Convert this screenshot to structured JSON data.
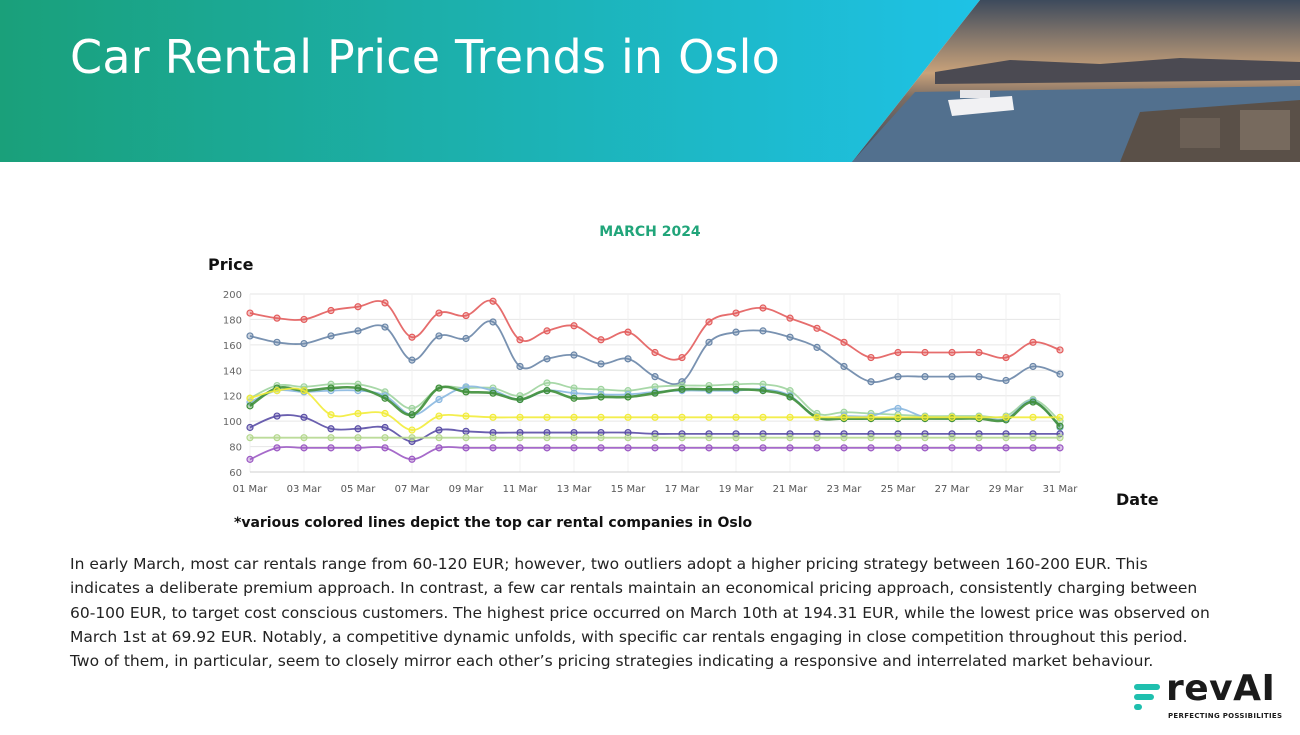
{
  "header": {
    "title": "Car Rental Price Trends in Oslo",
    "gradient_start": "#1aa07a",
    "gradient_end": "#1ec2e6"
  },
  "chart_data": {
    "type": "line",
    "title": "MARCH 2024",
    "ylabel": "Price",
    "xlabel": "Date",
    "ylim": [
      60,
      200
    ],
    "yticks": [
      60,
      80,
      100,
      120,
      140,
      160,
      180,
      200
    ],
    "x": [
      "01 Mar",
      "02 Mar",
      "03 Mar",
      "04 Mar",
      "05 Mar",
      "06 Mar",
      "07 Mar",
      "08 Mar",
      "09 Mar",
      "10 Mar",
      "11 Mar",
      "12 Mar",
      "13 Mar",
      "14 Mar",
      "15 Mar",
      "16 Mar",
      "17 Mar",
      "18 Mar",
      "19 Mar",
      "20 Mar",
      "21 Mar",
      "22 Mar",
      "23 Mar",
      "24 Mar",
      "25 Mar",
      "26 Mar",
      "27 Mar",
      "28 Mar",
      "29 Mar",
      "30 Mar",
      "31 Mar"
    ],
    "xtick_labels": [
      "01 Mar",
      "03 Mar",
      "05 Mar",
      "07 Mar",
      "09 Mar",
      "11 Mar",
      "13 Mar",
      "15 Mar",
      "17 Mar",
      "19 Mar",
      "21 Mar",
      "23 Mar",
      "25 Mar",
      "27 Mar",
      "29 Mar",
      "31 Mar"
    ],
    "grid": true,
    "legend": "none",
    "series": [
      {
        "color": "#e35d5d",
        "values": [
          185,
          181,
          180,
          187,
          190,
          193,
          166,
          185,
          183,
          194.31,
          164,
          171,
          175,
          164,
          170,
          154,
          150,
          178,
          185,
          189,
          181,
          173,
          162,
          150,
          154,
          154,
          154,
          154,
          150,
          162,
          156
        ]
      },
      {
        "color": "#6a86a8",
        "values": [
          167,
          162,
          161,
          167,
          171,
          174,
          148,
          167,
          165,
          178,
          143,
          149,
          152,
          145,
          149,
          135,
          131,
          162,
          170,
          171,
          166,
          158,
          143,
          131,
          135,
          135,
          135,
          135,
          132,
          143,
          137
        ]
      },
      {
        "color": "#9fd49f",
        "values": [
          118,
          128,
          127,
          129,
          129,
          123,
          110,
          126,
          126,
          126,
          120,
          130,
          126,
          125,
          124,
          127,
          128,
          128,
          129,
          129,
          124,
          106,
          107,
          106,
          105,
          104,
          104,
          104,
          104,
          117,
          100
        ]
      },
      {
        "color": "#8ab8e0",
        "values": [
          115,
          124,
          123,
          124,
          124,
          120,
          105,
          117,
          127,
          124,
          117,
          124,
          122,
          121,
          121,
          123,
          124,
          124,
          124,
          125,
          120,
          103,
          104,
          104,
          110,
          103,
          102,
          103,
          102,
          116,
          95
        ]
      },
      {
        "color": "#3f8f3a",
        "values": [
          112,
          126,
          124,
          126,
          126,
          118,
          105,
          126,
          123,
          122,
          117,
          124,
          118,
          119,
          119,
          122,
          125,
          125,
          125,
          124,
          119,
          103,
          102,
          102,
          102,
          102,
          102,
          102,
          101,
          115,
          96
        ]
      },
      {
        "color": "#f2ec3a",
        "values": [
          118,
          124,
          124,
          105,
          106,
          106,
          93,
          104,
          104,
          103,
          103,
          103,
          103,
          103,
          103,
          103,
          103,
          103,
          103,
          103,
          103,
          103,
          103,
          103,
          103,
          103,
          103,
          103,
          103,
          103,
          103
        ]
      },
      {
        "color": "#5a4ea6",
        "values": [
          95,
          104,
          103,
          94,
          94,
          95,
          84,
          93,
          92,
          91,
          91,
          91,
          91,
          91,
          91,
          90,
          90,
          90,
          90,
          90,
          90,
          90,
          90,
          90,
          90,
          90,
          90,
          90,
          90,
          90,
          90
        ]
      },
      {
        "color": "#b5d88f",
        "values": [
          87,
          87,
          87,
          87,
          87,
          87,
          87,
          87,
          87,
          87,
          87,
          87,
          87,
          87,
          87,
          87,
          87,
          87,
          87,
          87,
          87,
          87,
          87,
          87,
          87,
          87,
          87,
          87,
          87,
          87,
          87
        ]
      },
      {
        "color": "#9c5ac4",
        "values": [
          69.92,
          79,
          79,
          79,
          79,
          79,
          70,
          79,
          79,
          79,
          79,
          79,
          79,
          79,
          79,
          79,
          79,
          79,
          79,
          79,
          79,
          79,
          79,
          79,
          79,
          79,
          79,
          79,
          79,
          79,
          79
        ]
      }
    ]
  },
  "footnote": "*various colored lines depict the top car rental companies in Oslo",
  "body": {
    "paragraph": "In early March, most car rentals range from 60-120 EUR; however, two outliers adopt a higher pricing strategy between 160-200 EUR. This indicates a deliberate premium approach. In contrast, a few car rentals maintain an economical pricing approach, consistently charging between 60-100 EUR, to target cost conscious customers. The highest price occurred on March 10th at 194.31 EUR, while the lowest price was observed on March 1st at 69.92 EUR. Notably, a competitive dynamic unfolds, with specific car rentals engaging in close competition throughout this period. Two of them, in particular, seem to closely mirror each other’s pricing strategies indicating a responsive and interrelated market behaviour."
  },
  "logo": {
    "wordmark": "revAI",
    "tagline": "PERFECTING POSSIBILITIES",
    "accent": "#1fbfae"
  }
}
